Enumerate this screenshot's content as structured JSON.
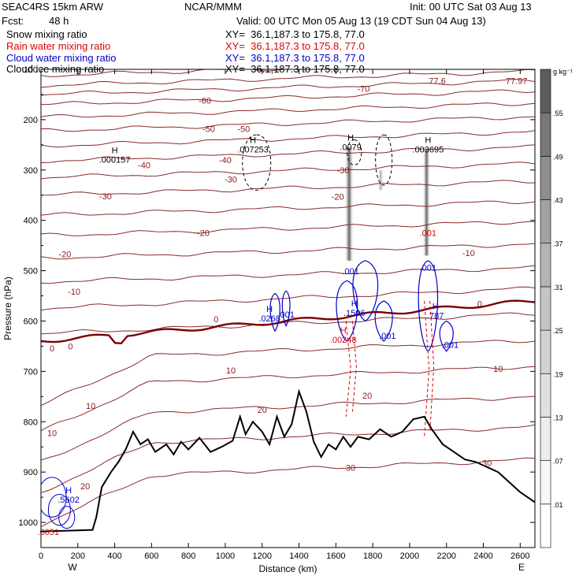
{
  "header": {
    "model": "SEAC4RS 15km ARW",
    "org": "NCAR/MMM",
    "init": "Init: 00 UTC Sat 03 Aug 13",
    "fcst_label": "Fcst:",
    "fcst_value": "48 h",
    "valid": "Valid: 00 UTC Mon 05 Aug 13 (19 CDT Sun 04 Aug 13)"
  },
  "fields": [
    {
      "name": "Snow mixing ratio",
      "xy": "XY=  36.1,187.3 to 175.8, 77.0",
      "color": "#000000"
    },
    {
      "name": "Rain water mixing ratio",
      "xy": "XY=  36.1,187.3 to 175.8, 77.0",
      "color": "#e00000"
    },
    {
      "name": "Cloud water mixing ratio",
      "xy": "XY=  36.1,187.3 to 175.8, 77.0",
      "color": "#0000cc"
    },
    {
      "name": "Cloud ice mixing ratio",
      "xy": "XY=  36.1,187.3 to 175.8, 77.0",
      "color": "#000000"
    }
  ],
  "chart_data": {
    "type": "cross-section",
    "xlabel": "Distance (km)",
    "ylabel": "Pressure (hPa)",
    "xlim": [
      0,
      2680
    ],
    "ylim": [
      1050,
      100
    ],
    "x_ticks": [
      "0",
      "200",
      "400",
      "600",
      "800",
      "1000",
      "1200",
      "1400",
      "1600",
      "1800",
      "2000",
      "2200",
      "2400",
      "2600"
    ],
    "y_ticks": [
      "100",
      "200",
      "300",
      "400",
      "500",
      "600",
      "700",
      "800",
      "900",
      "1000"
    ],
    "left_end": "W",
    "right_end": "E",
    "colorbar": {
      "unit": "g kg⁻¹",
      "levels": [
        ".01",
        ".07",
        ".13",
        ".19",
        ".25",
        ".31",
        ".37",
        ".43",
        ".49",
        ".55"
      ],
      "colors": [
        "#ffffff",
        "#f7f7f7",
        "#ececec",
        "#e0e0e0",
        "#d2d2d2",
        "#c4c4c4",
        "#b4b4b4",
        "#a2a2a2",
        "#8e8e8e",
        "#777777",
        "#5c5c5c"
      ]
    },
    "terrain": [
      {
        "x": 0,
        "p": 1018
      },
      {
        "x": 280,
        "p": 1015
      },
      {
        "x": 300,
        "p": 990
      },
      {
        "x": 330,
        "p": 930
      },
      {
        "x": 380,
        "p": 900
      },
      {
        "x": 420,
        "p": 880
      },
      {
        "x": 460,
        "p": 855
      },
      {
        "x": 500,
        "p": 820
      },
      {
        "x": 540,
        "p": 845
      },
      {
        "x": 580,
        "p": 835
      },
      {
        "x": 620,
        "p": 860
      },
      {
        "x": 680,
        "p": 845
      },
      {
        "x": 720,
        "p": 865
      },
      {
        "x": 760,
        "p": 840
      },
      {
        "x": 800,
        "p": 855
      },
      {
        "x": 860,
        "p": 832
      },
      {
        "x": 920,
        "p": 860
      },
      {
        "x": 980,
        "p": 850
      },
      {
        "x": 1040,
        "p": 838
      },
      {
        "x": 1080,
        "p": 790
      },
      {
        "x": 1110,
        "p": 825
      },
      {
        "x": 1150,
        "p": 800
      },
      {
        "x": 1200,
        "p": 820
      },
      {
        "x": 1240,
        "p": 845
      },
      {
        "x": 1280,
        "p": 790
      },
      {
        "x": 1320,
        "p": 830
      },
      {
        "x": 1360,
        "p": 805
      },
      {
        "x": 1400,
        "p": 740
      },
      {
        "x": 1440,
        "p": 780
      },
      {
        "x": 1480,
        "p": 840
      },
      {
        "x": 1520,
        "p": 870
      },
      {
        "x": 1560,
        "p": 845
      },
      {
        "x": 1600,
        "p": 855
      },
      {
        "x": 1640,
        "p": 830
      },
      {
        "x": 1680,
        "p": 850
      },
      {
        "x": 1720,
        "p": 830
      },
      {
        "x": 1780,
        "p": 835
      },
      {
        "x": 1840,
        "p": 815
      },
      {
        "x": 1900,
        "p": 830
      },
      {
        "x": 1960,
        "p": 820
      },
      {
        "x": 2020,
        "p": 795
      },
      {
        "x": 2080,
        "p": 790
      },
      {
        "x": 2120,
        "p": 815
      },
      {
        "x": 2180,
        "p": 845
      },
      {
        "x": 2240,
        "p": 860
      },
      {
        "x": 2300,
        "p": 875
      },
      {
        "x": 2360,
        "p": 880
      },
      {
        "x": 2420,
        "p": 890
      },
      {
        "x": 2480,
        "p": 900
      },
      {
        "x": 2540,
        "p": 920
      },
      {
        "x": 2600,
        "p": 940
      },
      {
        "x": 2680,
        "p": 960
      }
    ],
    "isotherm_labels": [
      {
        "text": "-70",
        "x": 1750,
        "p": 138
      },
      {
        "text": "77.6",
        "x": 2150,
        "p": 123
      },
      {
        "text": "77.97",
        "x": 2580,
        "p": 123
      },
      {
        "text": "-60",
        "x": 890,
        "p": 162
      },
      {
        "text": "-50",
        "x": 910,
        "p": 218
      },
      {
        "text": "-50",
        "x": 1100,
        "p": 218
      },
      {
        "text": "-40",
        "x": 560,
        "p": 290
      },
      {
        "text": "-40",
        "x": 1000,
        "p": 280
      },
      {
        "text": "-30",
        "x": 1030,
        "p": 318
      },
      {
        "text": "-30",
        "x": 1640,
        "p": 300
      },
      {
        "text": "-30",
        "x": 350,
        "p": 352
      },
      {
        "text": "-20",
        "x": 1610,
        "p": 353
      },
      {
        "text": "-20",
        "x": 880,
        "p": 425
      },
      {
        "text": "-20",
        "x": 130,
        "p": 467
      },
      {
        "text": "-10",
        "x": 2320,
        "p": 465
      },
      {
        "text": "-10",
        "x": 180,
        "p": 541
      },
      {
        "text": "0",
        "x": 2380,
        "p": 566
      },
      {
        "text": "0",
        "x": 950,
        "p": 596
      },
      {
        "text": "0",
        "x": 160,
        "p": 650
      },
      {
        "text": "0",
        "x": 60,
        "p": 654
      },
      {
        "text": "10",
        "x": 1030,
        "p": 698
      },
      {
        "text": "10",
        "x": 2480,
        "p": 695
      },
      {
        "text": "10",
        "x": 270,
        "p": 768
      },
      {
        "text": "10",
        "x": 60,
        "p": 822
      },
      {
        "text": "20",
        "x": 1770,
        "p": 748
      },
      {
        "text": "20",
        "x": 1200,
        "p": 776
      },
      {
        "text": "20",
        "x": 240,
        "p": 928
      },
      {
        "text": "30",
        "x": 1680,
        "p": 891
      },
      {
        "text": "30",
        "x": 2420,
        "p": 882
      }
    ],
    "maxima_labels": [
      {
        "mark": "H",
        "value": ".000157",
        "x": 400,
        "p": 282,
        "color": "#000000"
      },
      {
        "mark": "H",
        "value": ".007253",
        "x": 1150,
        "p": 262,
        "color": "#000000"
      },
      {
        "mark": "H",
        "value": ".0079",
        "x": 1680,
        "p": 257,
        "color": "#000000"
      },
      {
        "mark": "H",
        "value": ".003695",
        "x": 2100,
        "p": 262,
        "color": "#000000"
      },
      {
        "mark": "",
        "value": ".001",
        "x": 2100,
        "p": 428,
        "color": "#e00000"
      },
      {
        "mark": "",
        "value": ".001",
        "x": 1680,
        "p": 504,
        "color": "#0000cc"
      },
      {
        "mark": "",
        "value": ".001",
        "x": 2100,
        "p": 497,
        "color": "#0000cc"
      },
      {
        "mark": "H",
        "value": ".1506",
        "x": 1700,
        "p": 587,
        "color": "#0000cc"
      },
      {
        "mark": "H",
        "value": ".787",
        "x": 2140,
        "p": 592,
        "color": "#0000cc"
      },
      {
        "mark": "",
        "value": ".001",
        "x": 1330,
        "p": 590,
        "color": "#0000cc"
      },
      {
        "mark": "",
        "value": ".001",
        "x": 1880,
        "p": 632,
        "color": "#0000cc"
      },
      {
        "mark": "",
        "value": ".001",
        "x": 2220,
        "p": 650,
        "color": "#0000cc"
      },
      {
        "mark": "H",
        "value": ".0268",
        "x": 1240,
        "p": 598,
        "color": "#0000cc"
      },
      {
        "mark": "H",
        "value": ".00248",
        "x": 1640,
        "p": 640,
        "color": "#e00000"
      },
      {
        "mark": "H",
        "value": ".5602",
        "x": 150,
        "p": 958,
        "color": "#0000cc"
      },
      {
        "mark": "",
        "value": ".0051",
        "x": 40,
        "p": 1022,
        "color": "#e00000"
      }
    ]
  }
}
